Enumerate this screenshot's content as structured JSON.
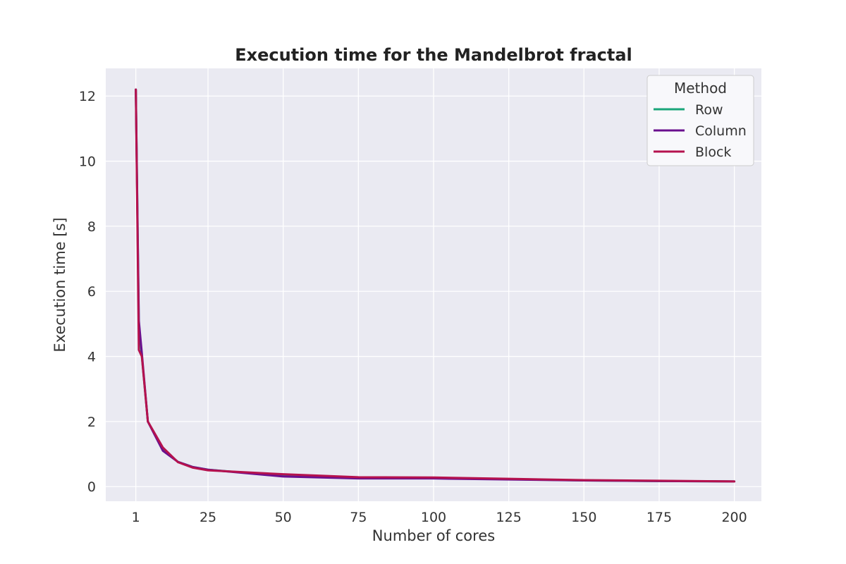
{
  "chart_data": {
    "type": "line",
    "title": "Execution time for the Mandelbrot fractal",
    "xlabel": "Number of cores",
    "ylabel": "Execution time [s]",
    "xlim": [
      -9,
      209
    ],
    "ylim": [
      -0.45,
      12.85
    ],
    "xticks": [
      1,
      25,
      50,
      75,
      100,
      125,
      150,
      175,
      200
    ],
    "yticks": [
      0,
      2,
      4,
      6,
      8,
      10,
      12
    ],
    "grid": true,
    "background": "#eaeaf2",
    "legend": {
      "title": "Method",
      "position": "top-right"
    },
    "series": [
      {
        "name": "Row",
        "color": "#1aa67a",
        "x": [
          1,
          2,
          3,
          5,
          10,
          15,
          20,
          25,
          50,
          75,
          100,
          125,
          150,
          175,
          200
        ],
        "y": [
          12.2,
          4.9,
          4.0,
          2.0,
          1.15,
          0.76,
          0.6,
          0.52,
          0.33,
          0.26,
          0.26,
          0.23,
          0.19,
          0.17,
          0.16
        ]
      },
      {
        "name": "Column",
        "color": "#6a0f8e",
        "x": [
          1,
          2,
          3,
          5,
          10,
          15,
          20,
          25,
          50,
          75,
          100,
          125,
          150,
          175,
          200
        ],
        "y": [
          12.2,
          5.1,
          4.1,
          2.0,
          1.1,
          0.76,
          0.6,
          0.52,
          0.31,
          0.25,
          0.25,
          0.22,
          0.19,
          0.17,
          0.16
        ]
      },
      {
        "name": "Block",
        "color": "#b5124e",
        "x": [
          1,
          2,
          3,
          5,
          10,
          15,
          20,
          25,
          50,
          75,
          100,
          125,
          150,
          175,
          200
        ],
        "y": [
          12.2,
          4.2,
          4.0,
          2.0,
          1.2,
          0.75,
          0.58,
          0.5,
          0.38,
          0.29,
          0.28,
          0.24,
          0.2,
          0.18,
          0.16
        ]
      }
    ]
  }
}
